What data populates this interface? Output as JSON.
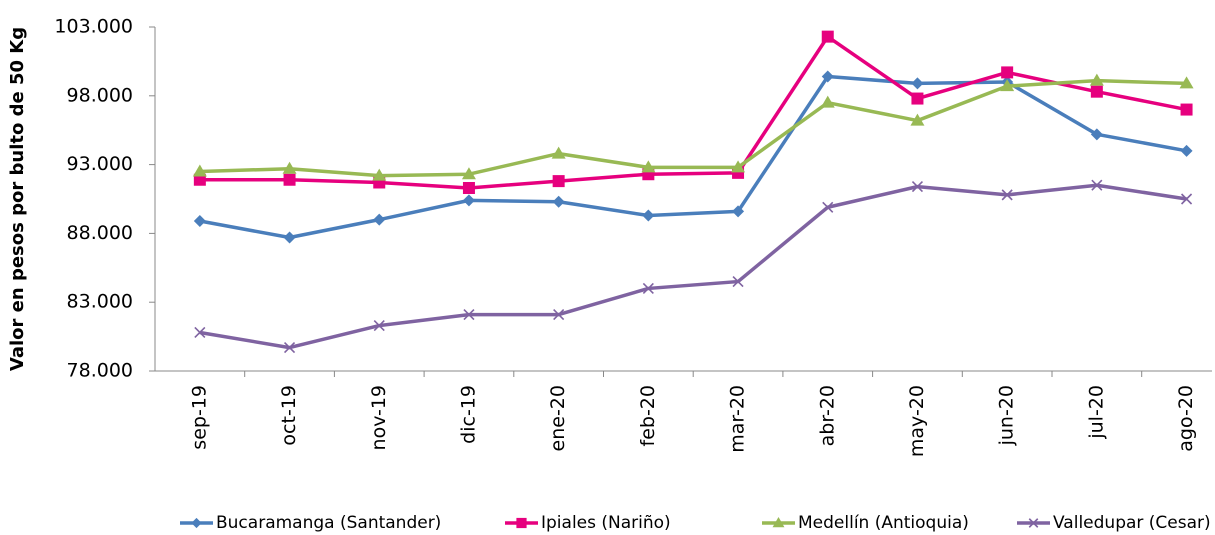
{
  "chart_data": {
    "type": "line",
    "y_axis_label": "Valor en pesos por bulto de 50 Kg",
    "categories": [
      "sep-19",
      "oct-19",
      "nov-19",
      "dic-19",
      "ene-20",
      "feb-20",
      "mar-20",
      "abr-20",
      "may-20",
      "jun-20",
      "jul-20",
      "ago-20"
    ],
    "series": [
      {
        "name": "Bucaramanga (Santander)",
        "color": "#4a7ebb",
        "marker": "diamond",
        "values": [
          88900,
          87700,
          89000,
          90400,
          90300,
          89300,
          89600,
          99400,
          98900,
          99000,
          95200,
          94000
        ]
      },
      {
        "name": "Ipiales (Nariño)",
        "color": "#e6007e",
        "marker": "square",
        "values": [
          91900,
          91900,
          91700,
          91300,
          91800,
          92300,
          92400,
          102300,
          97800,
          99700,
          98300,
          97000
        ]
      },
      {
        "name": "Medellín (Antioquia)",
        "color": "#98b954",
        "marker": "triangle",
        "values": [
          92500,
          92700,
          92200,
          92300,
          93800,
          92800,
          92800,
          97500,
          96200,
          98700,
          99100,
          98900
        ]
      },
      {
        "name": "Valledupar (Cesar)",
        "color": "#7f63a1",
        "marker": "x",
        "values": [
          80800,
          79700,
          81300,
          82100,
          82100,
          84000,
          84500,
          89900,
          91400,
          90800,
          91500,
          90500
        ]
      }
    ],
    "ylim": [
      78000,
      103000
    ],
    "yticks": [
      {
        "value": 78000,
        "label": "78.000"
      },
      {
        "value": 83000,
        "label": "83.000"
      },
      {
        "value": 88000,
        "label": "88.000"
      },
      {
        "value": 93000,
        "label": "93.000"
      },
      {
        "value": 98000,
        "label": "98.000"
      },
      {
        "value": 103000,
        "label": "103.000"
      }
    ],
    "legend": "bottom"
  }
}
